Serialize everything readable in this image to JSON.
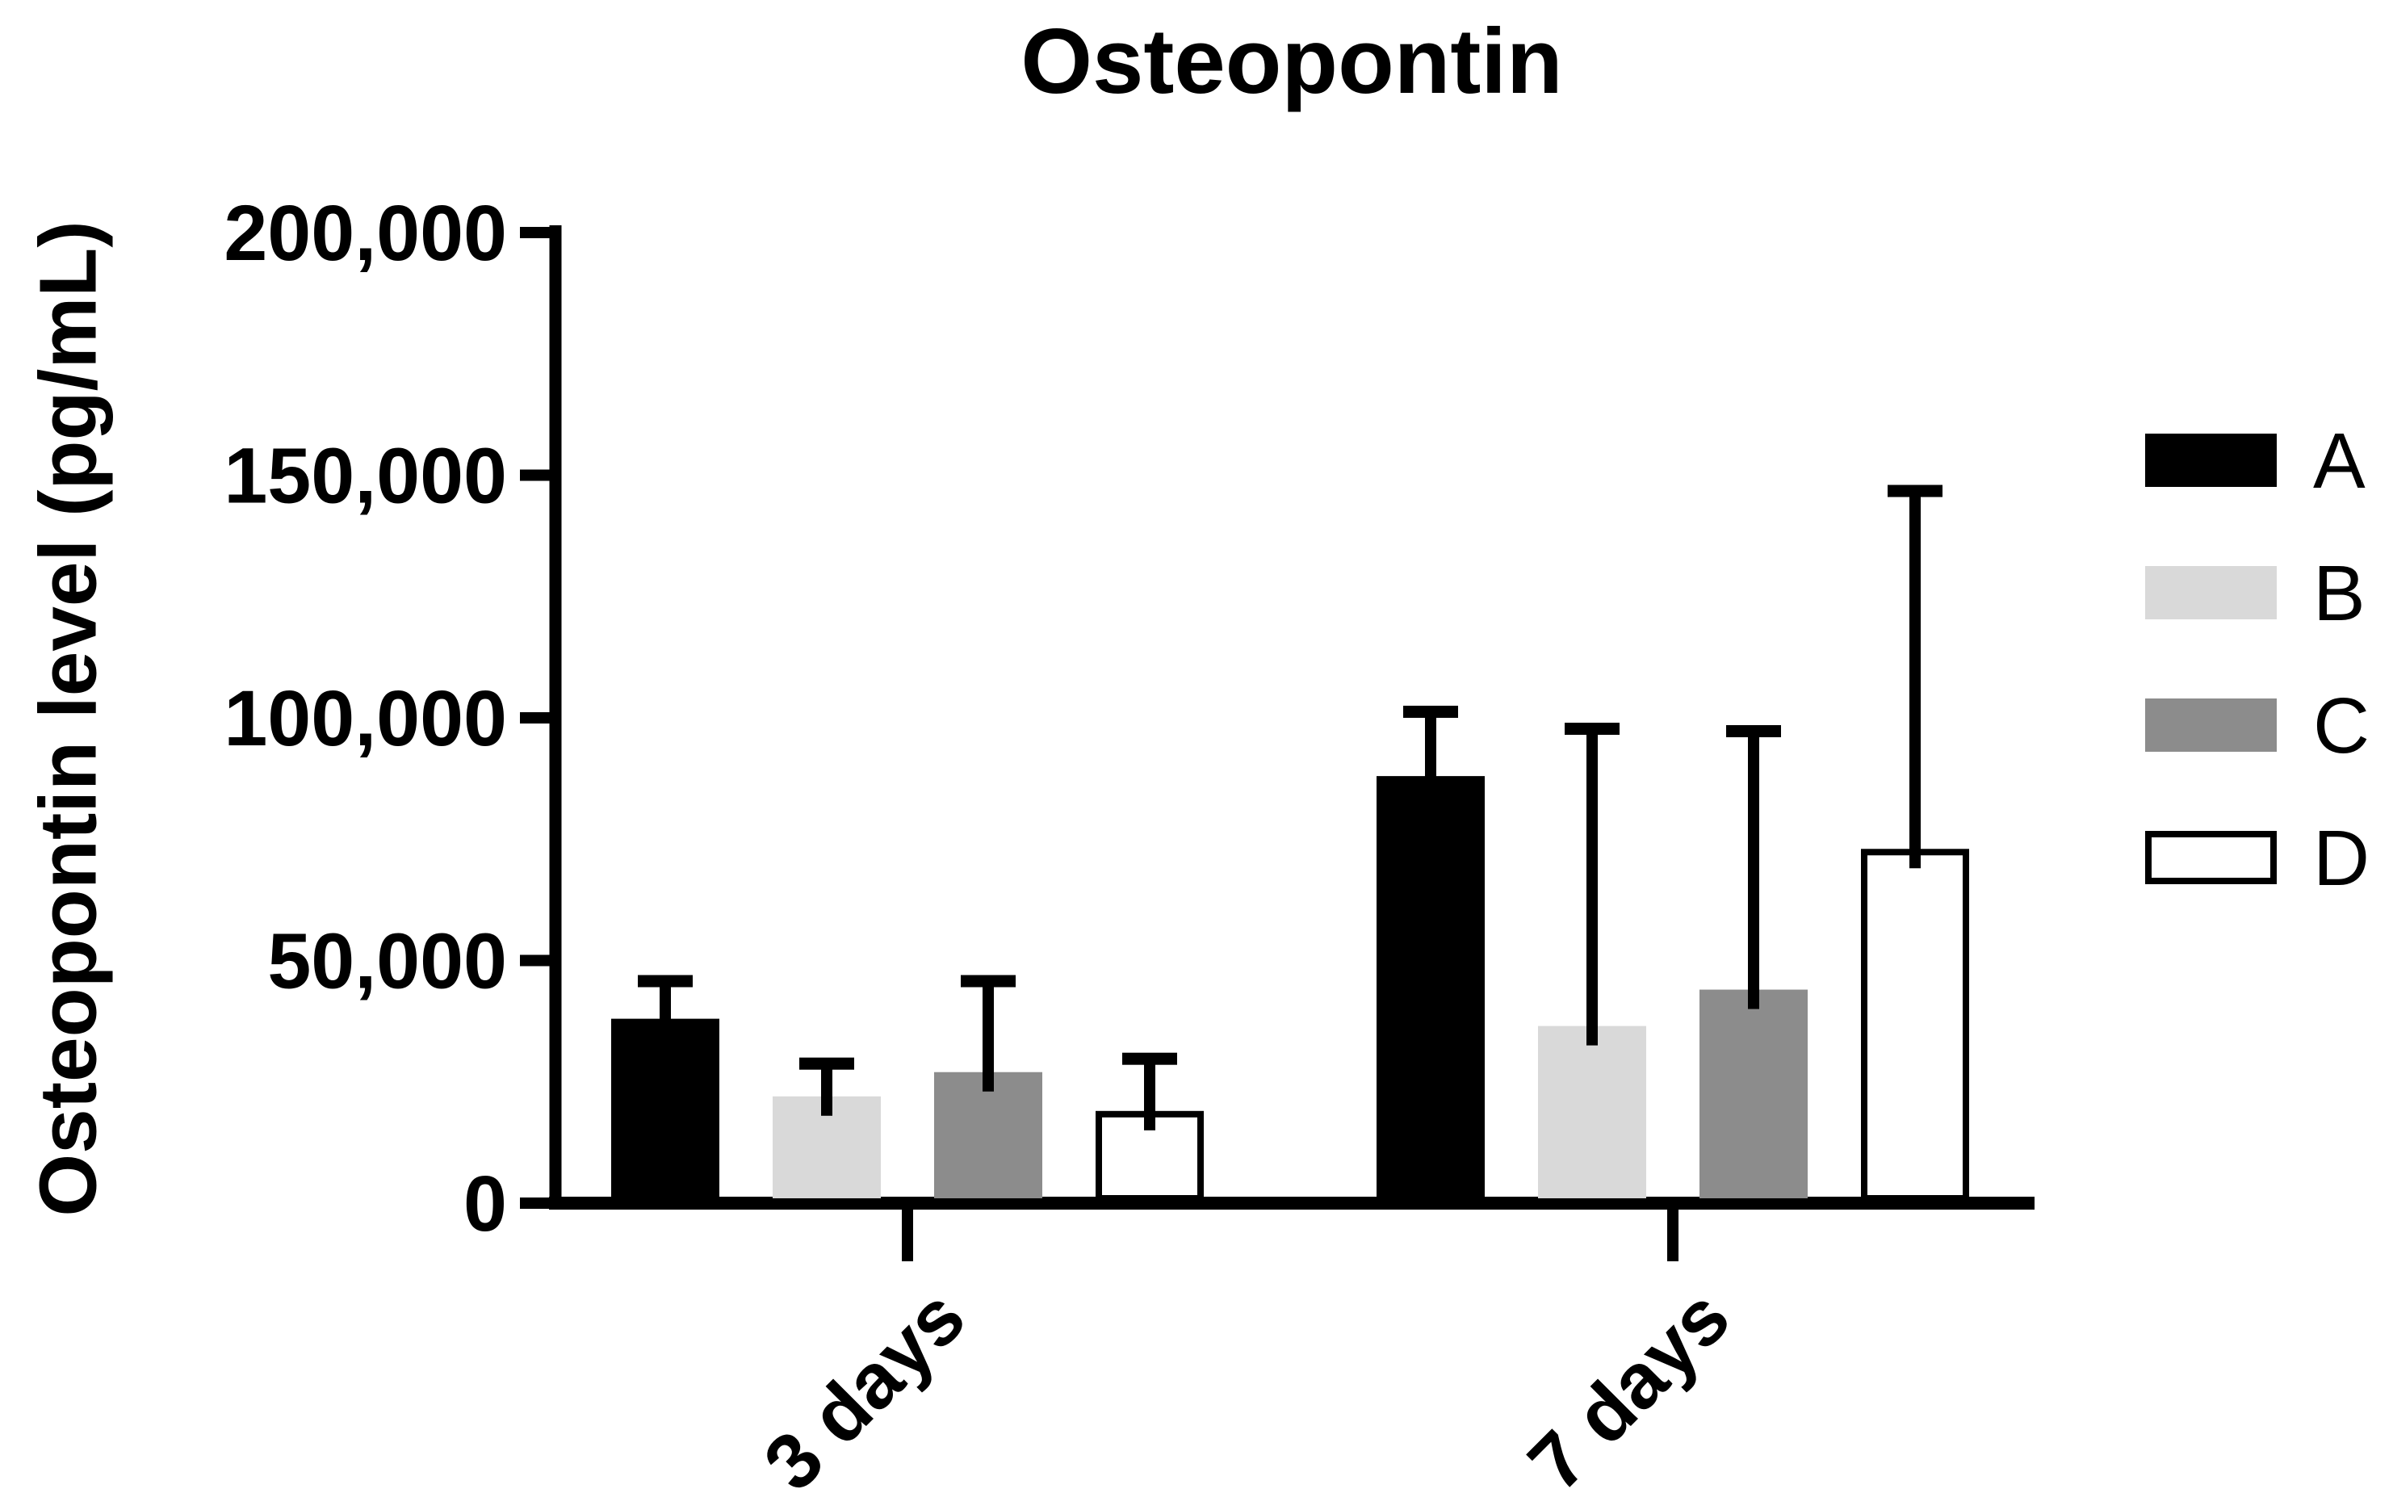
{
  "chart_data": {
    "type": "bar",
    "title": "Osteopontin",
    "ylabel": "Osteopontin level (pg/mL)",
    "xlabel": "",
    "categories": [
      "3 days",
      "7 days"
    ],
    "series": [
      {
        "name": "A",
        "color": "#000000",
        "outline": null,
        "values": [
          38000,
          88000
        ],
        "errors_plus": [
          9000,
          14500
        ]
      },
      {
        "name": "B",
        "color": "#d9d9d9",
        "outline": null,
        "values": [
          22000,
          36500
        ],
        "errors_plus": [
          8000,
          62500
        ]
      },
      {
        "name": "C",
        "color": "#8c8c8c",
        "outline": null,
        "values": [
          27000,
          44000
        ],
        "errors_plus": [
          20000,
          54500
        ]
      },
      {
        "name": "D",
        "color": "#ffffff",
        "outline": "#000000",
        "values": [
          19000,
          73000
        ],
        "errors_plus": [
          12000,
          75000
        ]
      }
    ],
    "ylim": [
      0,
      200000
    ],
    "y_ticks": [
      0,
      50000,
      100000,
      150000,
      200000
    ],
    "y_tick_labels": [
      "0",
      "50,000",
      "100,000",
      "150,000",
      "200,000"
    ],
    "error_bars": "upper",
    "grid": false,
    "legend_position": "right",
    "legend_labels": [
      "A",
      "B",
      "C",
      "D"
    ],
    "axis_color": "#000000"
  }
}
